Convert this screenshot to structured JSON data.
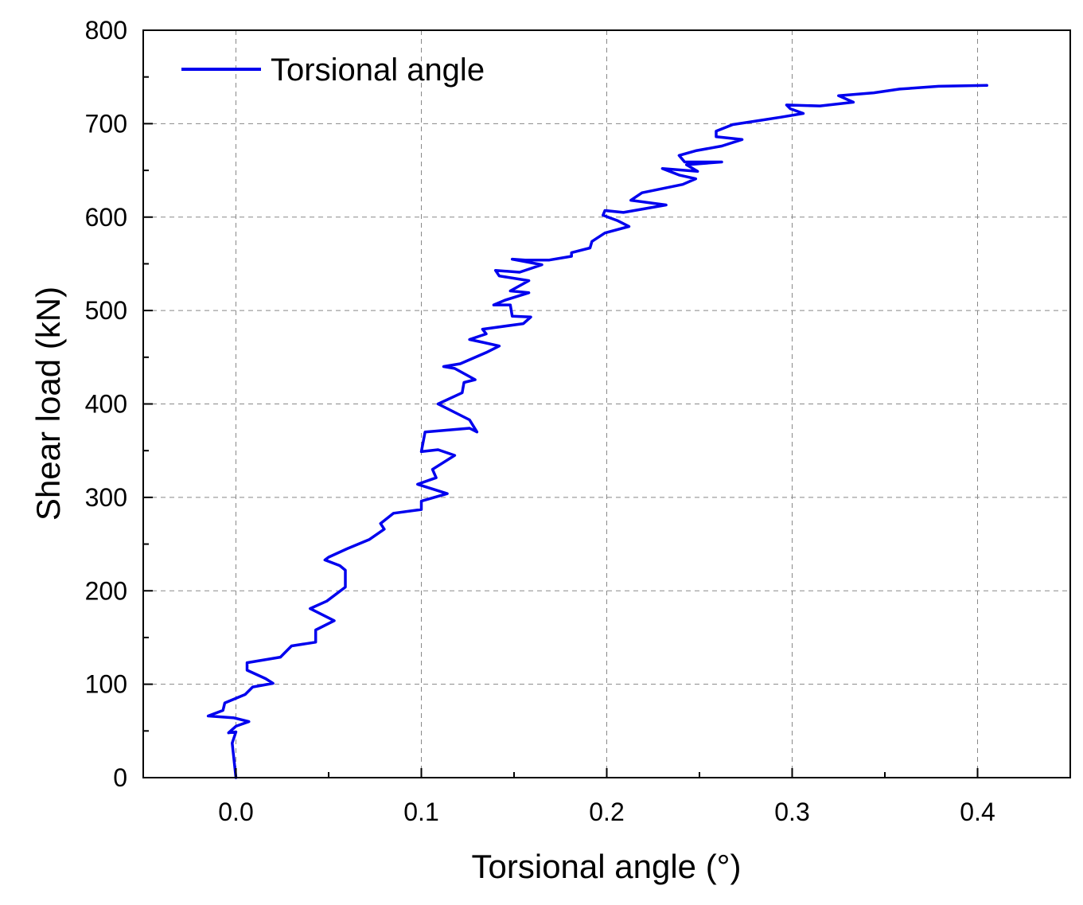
{
  "chart_data": {
    "type": "line",
    "title": "",
    "xlabel": "Torsional angle (°)",
    "ylabel": "Shear load (kN)",
    "xlim": [
      -0.05,
      0.45
    ],
    "ylim": [
      0,
      800
    ],
    "xticks": [
      0.0,
      0.1,
      0.2,
      0.3,
      0.4
    ],
    "xtick_labels": [
      "0.0",
      "0.1",
      "0.2",
      "0.3",
      "0.4"
    ],
    "yticks": [
      0,
      100,
      200,
      300,
      400,
      500,
      600,
      700,
      800
    ],
    "ytick_labels": [
      "0",
      "100",
      "200",
      "300",
      "400",
      "500",
      "600",
      "700",
      "800"
    ],
    "grid": true,
    "legend": {
      "placement": "top-left",
      "entries": [
        "Torsional angle"
      ]
    },
    "series": [
      {
        "name": "Torsional angle",
        "color": "#0000ee",
        "points": [
          [
            0.0,
            0
          ],
          [
            -0.002,
            37
          ],
          [
            0.0,
            49
          ],
          [
            -0.004,
            48
          ],
          [
            0.0,
            55
          ],
          [
            0.007,
            60
          ],
          [
            -0.001,
            64
          ],
          [
            -0.015,
            66
          ],
          [
            -0.007,
            72
          ],
          [
            -0.006,
            80
          ],
          [
            0.005,
            89
          ],
          [
            0.009,
            97
          ],
          [
            0.02,
            101
          ],
          [
            0.016,
            106
          ],
          [
            0.006,
            115
          ],
          [
            0.006,
            123
          ],
          [
            0.024,
            129
          ],
          [
            0.03,
            141
          ],
          [
            0.043,
            145
          ],
          [
            0.043,
            158
          ],
          [
            0.053,
            168
          ],
          [
            0.04,
            181
          ],
          [
            0.049,
            189
          ],
          [
            0.059,
            204
          ],
          [
            0.059,
            222
          ],
          [
            0.056,
            227
          ],
          [
            0.048,
            233
          ],
          [
            0.05,
            236
          ],
          [
            0.06,
            245
          ],
          [
            0.072,
            255
          ],
          [
            0.08,
            266
          ],
          [
            0.078,
            272
          ],
          [
            0.085,
            283
          ],
          [
            0.1,
            287
          ],
          [
            0.1,
            296
          ],
          [
            0.114,
            304
          ],
          [
            0.098,
            314
          ],
          [
            0.108,
            321
          ],
          [
            0.106,
            330
          ],
          [
            0.118,
            345
          ],
          [
            0.109,
            351
          ],
          [
            0.1,
            349
          ],
          [
            0.102,
            370
          ],
          [
            0.126,
            374
          ],
          [
            0.13,
            370
          ],
          [
            0.126,
            383
          ],
          [
            0.109,
            400
          ],
          [
            0.122,
            412
          ],
          [
            0.123,
            423
          ],
          [
            0.129,
            426
          ],
          [
            0.118,
            438
          ],
          [
            0.112,
            440
          ],
          [
            0.121,
            443
          ],
          [
            0.135,
            455
          ],
          [
            0.142,
            462
          ],
          [
            0.133,
            466
          ],
          [
            0.126,
            469
          ],
          [
            0.135,
            475
          ],
          [
            0.133,
            480
          ],
          [
            0.155,
            486
          ],
          [
            0.159,
            493
          ],
          [
            0.149,
            494
          ],
          [
            0.148,
            506
          ],
          [
            0.139,
            506
          ],
          [
            0.145,
            511
          ],
          [
            0.158,
            519
          ],
          [
            0.148,
            521
          ],
          [
            0.158,
            532
          ],
          [
            0.142,
            537
          ],
          [
            0.14,
            543
          ],
          [
            0.153,
            541
          ],
          [
            0.165,
            549
          ],
          [
            0.149,
            555
          ],
          [
            0.156,
            554
          ],
          [
            0.169,
            554
          ],
          [
            0.181,
            558
          ],
          [
            0.181,
            562
          ],
          [
            0.191,
            567
          ],
          [
            0.192,
            574
          ],
          [
            0.199,
            583
          ],
          [
            0.212,
            590
          ],
          [
            0.206,
            596
          ],
          [
            0.198,
            602
          ],
          [
            0.199,
            607
          ],
          [
            0.209,
            605
          ],
          [
            0.232,
            613
          ],
          [
            0.213,
            618
          ],
          [
            0.219,
            626
          ],
          [
            0.241,
            635
          ],
          [
            0.248,
            641
          ],
          [
            0.239,
            645
          ],
          [
            0.23,
            652
          ],
          [
            0.249,
            649
          ],
          [
            0.243,
            656
          ],
          [
            0.262,
            659
          ],
          [
            0.242,
            659
          ],
          [
            0.239,
            666
          ],
          [
            0.248,
            671
          ],
          [
            0.262,
            676
          ],
          [
            0.273,
            683
          ],
          [
            0.259,
            686
          ],
          [
            0.259,
            692
          ],
          [
            0.268,
            699
          ],
          [
            0.281,
            703
          ],
          [
            0.294,
            707
          ],
          [
            0.306,
            711
          ],
          [
            0.299,
            716
          ],
          [
            0.297,
            720
          ],
          [
            0.315,
            719
          ],
          [
            0.333,
            723
          ],
          [
            0.325,
            730
          ],
          [
            0.344,
            733
          ],
          [
            0.358,
            737
          ],
          [
            0.379,
            740
          ],
          [
            0.405,
            741
          ]
        ]
      }
    ]
  }
}
